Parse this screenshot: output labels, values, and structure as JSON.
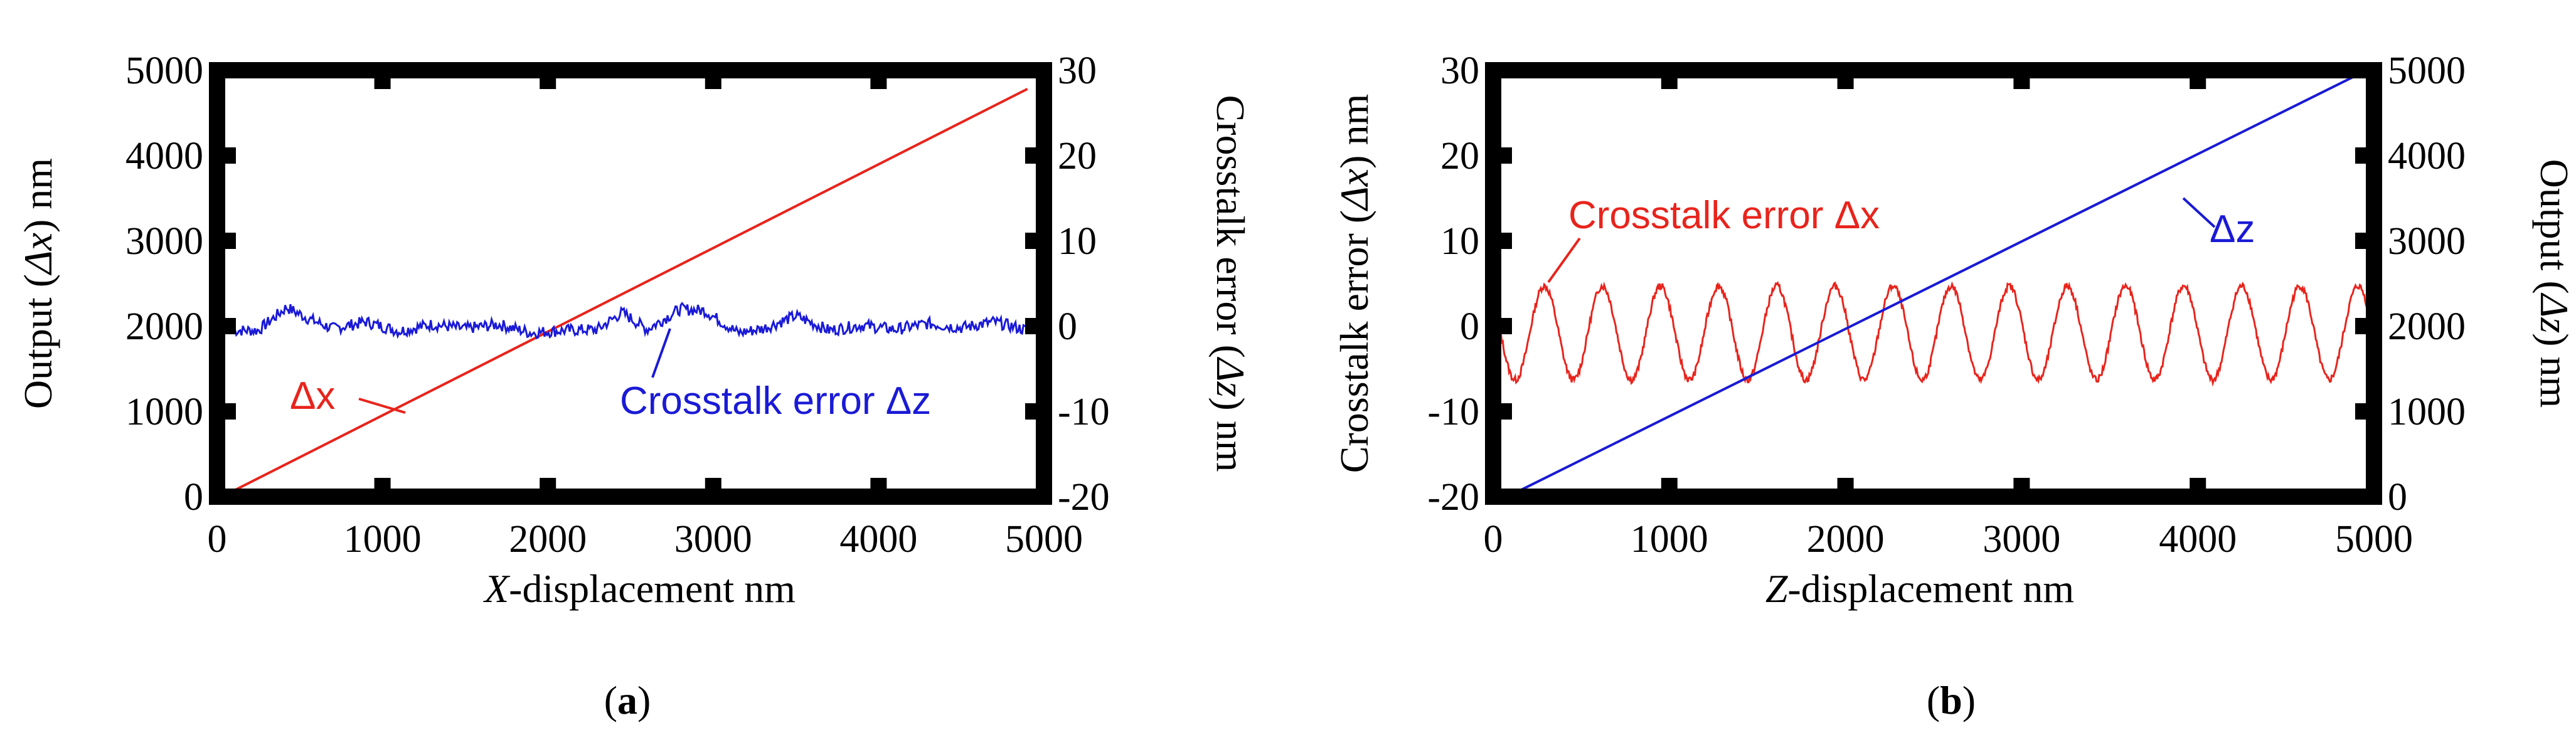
{
  "chart_data": [
    {
      "type": "line",
      "panel_label": {
        "open": "(",
        "letter": "a",
        "close": ")"
      },
      "xlabel": {
        "var": "X",
        "rest": "-displacement  nm"
      },
      "ylabel_left": {
        "pre": "Output (",
        "sym": "Δx",
        "post": ")  nm"
      },
      "ylabel_right": {
        "pre": "Crosstalk error (",
        "sym": "Δz",
        "post": ")  nm"
      },
      "xlim": [
        0,
        5000
      ],
      "ylim_left": [
        0,
        5000
      ],
      "ylim_right": [
        -20,
        30
      ],
      "x_ticks": [
        "0",
        "1000",
        "2000",
        "3000",
        "4000",
        "5000"
      ],
      "y_left_ticks": [
        "0",
        "1000",
        "2000",
        "3000",
        "4000",
        "5000"
      ],
      "y_right_ticks": [
        "-20",
        "-10",
        "0",
        "10",
        "20",
        "30"
      ],
      "series": [
        {
          "name": "Δx",
          "axis": "left",
          "color": "#e8241c",
          "kind": "linear",
          "x": [
            100,
            4900
          ],
          "y": [
            70,
            4780
          ]
        },
        {
          "name": "Crosstalk error Δz",
          "axis": "right",
          "color": "#1a1ad6",
          "kind": "noise",
          "x_start": 100,
          "x_end": 4900,
          "baseline": -0.5,
          "amplitude": 2.5,
          "points": [
            [
              100,
              -0.5
            ],
            [
              250,
              -0.5
            ],
            [
              420,
              2.2
            ],
            [
              560,
              0.8
            ],
            [
              700,
              -0.3
            ],
            [
              900,
              0.5
            ],
            [
              1100,
              -0.6
            ],
            [
              1300,
              0.2
            ],
            [
              1500,
              -0.3
            ],
            [
              1700,
              0.2
            ],
            [
              1900,
              -0.8
            ],
            [
              2100,
              -0.5
            ],
            [
              2300,
              -0.4
            ],
            [
              2450,
              1.6
            ],
            [
              2600,
              -0.4
            ],
            [
              2800,
              2.0
            ],
            [
              2950,
              1.8
            ],
            [
              3150,
              -0.8
            ],
            [
              3300,
              -0.3
            ],
            [
              3500,
              1.2
            ],
            [
              3700,
              -0.5
            ],
            [
              3900,
              0.1
            ],
            [
              4100,
              -0.4
            ],
            [
              4300,
              0.3
            ],
            [
              4500,
              -0.2
            ],
            [
              4700,
              0.5
            ],
            [
              4900,
              -0.5
            ]
          ]
        }
      ],
      "annotations": [
        {
          "text": "Δx",
          "target": "Δx"
        },
        {
          "text": "Crosstalk error Δz",
          "target": "Crosstalk error Δz"
        }
      ]
    },
    {
      "type": "line",
      "panel_label": {
        "open": "(",
        "letter": "b",
        "close": ")"
      },
      "xlabel": {
        "var": "Z",
        "rest": "-displacement  nm"
      },
      "ylabel_left": {
        "pre": "Crosstalk error (",
        "sym": "Δx",
        "post": ")  nm"
      },
      "ylabel_right": {
        "pre": "Output (",
        "sym": "Δz",
        "post": ")  nm"
      },
      "xlim": [
        0,
        5000
      ],
      "ylim_left": [
        -20,
        30
      ],
      "ylim_right": [
        0,
        5000
      ],
      "x_ticks": [
        "0",
        "1000",
        "2000",
        "3000",
        "4000",
        "5000"
      ],
      "y_left_ticks": [
        "-20",
        "-10",
        "0",
        "10",
        "20",
        "30"
      ],
      "y_right_ticks": [
        "0",
        "1000",
        "2000",
        "3000",
        "4000",
        "5000"
      ],
      "series": [
        {
          "name": "Crosstalk error Δx",
          "axis": "left",
          "color": "#e8241c",
          "kind": "sine",
          "x_start": 30,
          "x_end": 4980,
          "period": 330,
          "amplitude": 5.5,
          "offset": -0.8,
          "phase_peak_x": 290
        },
        {
          "name": "Δz",
          "axis": "right",
          "color": "#1a1ad6",
          "kind": "linear",
          "x": [
            100,
            4900
          ],
          "y": [
            20,
            4940
          ]
        }
      ],
      "annotations": [
        {
          "text": "Crosstalk error Δx",
          "target": "Crosstalk error Δx"
        },
        {
          "text": "Δz",
          "target": "Δz"
        }
      ]
    }
  ]
}
